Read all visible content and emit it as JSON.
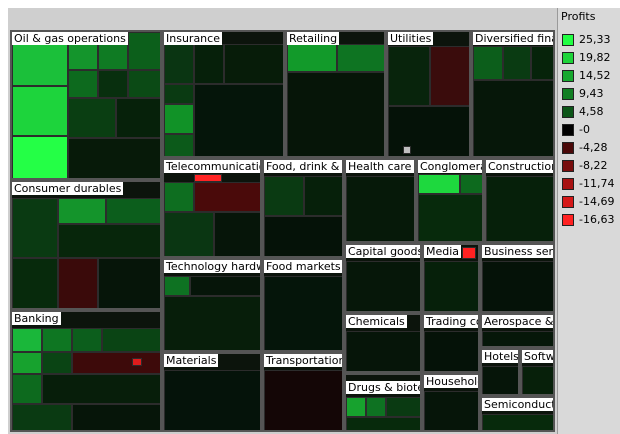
{
  "legend": {
    "title": "Profits",
    "items": [
      {
        "label": "25,33",
        "color": "#22ff44"
      },
      {
        "label": "19,82",
        "color": "#1ed43a"
      },
      {
        "label": "14,52",
        "color": "#17a82e"
      },
      {
        "label": "9,43",
        "color": "#117e22"
      },
      {
        "label": "4,58",
        "color": "#0b5517"
      },
      {
        "label": "-0",
        "color": "#000000"
      },
      {
        "label": "-4,28",
        "color": "#4a0808"
      },
      {
        "label": "-8,22",
        "color": "#780d0d"
      },
      {
        "label": "-11,74",
        "color": "#a81212"
      },
      {
        "label": "-14,69",
        "color": "#d51818"
      },
      {
        "label": "-16,63",
        "color": "#ff2222"
      }
    ]
  },
  "sectors": [
    {
      "name": "Oil & gas operations"
    },
    {
      "name": "Insurance"
    },
    {
      "name": "Retailing"
    },
    {
      "name": "Utilities"
    },
    {
      "name": "Diversified financials"
    },
    {
      "name": "Consumer durables"
    },
    {
      "name": "Telecommunications services"
    },
    {
      "name": "Food, drink & tobacco"
    },
    {
      "name": "Health care equipment & services"
    },
    {
      "name": "Conglomerates"
    },
    {
      "name": "Construction"
    },
    {
      "name": "Technology hardware & equipment"
    },
    {
      "name": "Food markets"
    },
    {
      "name": "Capital goods"
    },
    {
      "name": "Media"
    },
    {
      "name": "Business services & supplies"
    },
    {
      "name": "Banking"
    },
    {
      "name": "Chemicals"
    },
    {
      "name": "Trading companies"
    },
    {
      "name": "Aerospace & defense"
    },
    {
      "name": "Materials"
    },
    {
      "name": "Transportation"
    },
    {
      "name": "Hotels, restaurants & leisure"
    },
    {
      "name": "Software & services"
    },
    {
      "name": "Drugs & biotechnology"
    },
    {
      "name": "Household & personal products"
    },
    {
      "name": "Semiconductors"
    }
  ]
}
